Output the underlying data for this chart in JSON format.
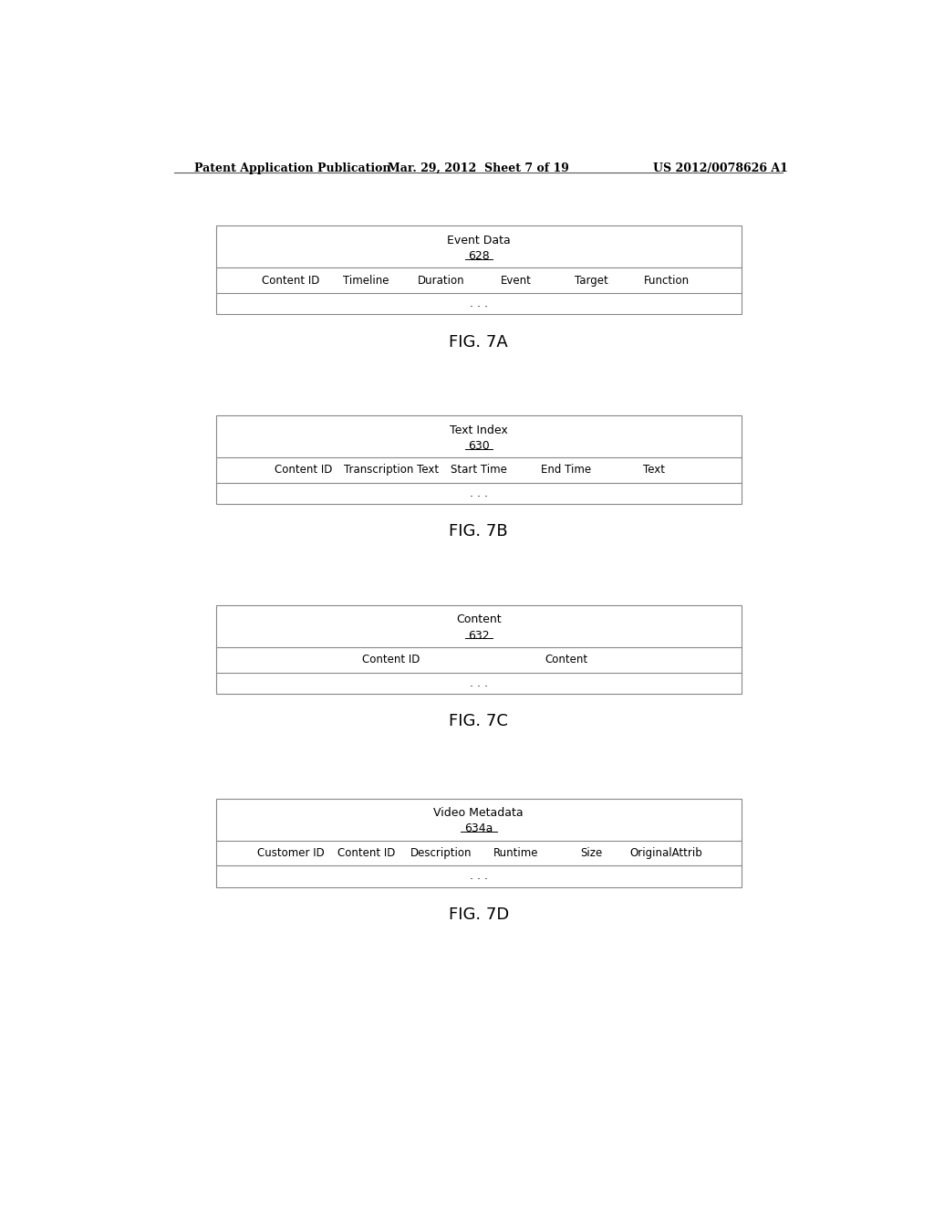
{
  "header_left": "Patent Application Publication",
  "header_center": "Mar. 29, 2012  Sheet 7 of 19",
  "header_right": "US 2012/0078626 A1",
  "figures": [
    {
      "title": "Event Data",
      "label": "628",
      "columns": [
        "Content ID",
        "Timeline",
        "Duration",
        "Event",
        "Target",
        "Function"
      ],
      "caption": "FIG. 7A"
    },
    {
      "title": "Text Index",
      "label": "630",
      "columns": [
        "Content ID",
        "Transcription Text",
        "Start Time",
        "End Time",
        "Text"
      ],
      "caption": "FIG. 7B"
    },
    {
      "title": "Content",
      "label": "632",
      "columns": [
        "Content ID",
        "Content"
      ],
      "caption": "FIG. 7C"
    },
    {
      "title": "Video Metadata",
      "label": "634a",
      "columns": [
        "Customer ID",
        "Content ID",
        "Description",
        "Runtime",
        "Size",
        "OriginalAttrib"
      ],
      "caption": "FIG. 7D"
    }
  ],
  "bg_color": "#ffffff",
  "border_color": "#888888",
  "text_color": "#000000",
  "font_size": 9,
  "header_font_size": 9,
  "caption_font_size": 13
}
